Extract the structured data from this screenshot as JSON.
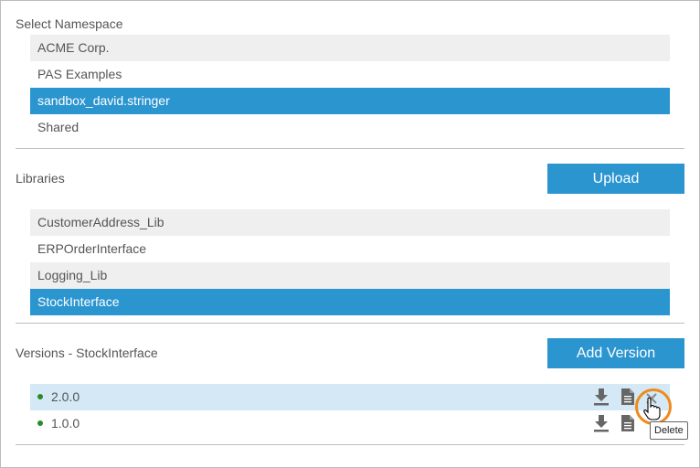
{
  "namespace": {
    "title": "Select Namespace",
    "items": [
      "ACME Corp.",
      "PAS Examples",
      "sandbox_david.stringer",
      "Shared"
    ],
    "selected": "sandbox_david.stringer"
  },
  "libraries": {
    "title": "Libraries",
    "upload_label": "Upload",
    "items": [
      "CustomerAddress_Lib",
      "ERPOrderInterface",
      "Logging_Lib",
      "StockInterface"
    ],
    "selected": "StockInterface"
  },
  "versions": {
    "title": "Versions - StockInterface",
    "add_label": "Add Version",
    "items": [
      {
        "version": "2.0.0",
        "status_color": "#2a8a2a"
      },
      {
        "version": "1.0.0",
        "status_color": "#2a8a2a"
      }
    ],
    "tooltip": "Delete"
  },
  "colors": {
    "accent": "#2b95cf",
    "highlight": "#f08a1c"
  }
}
